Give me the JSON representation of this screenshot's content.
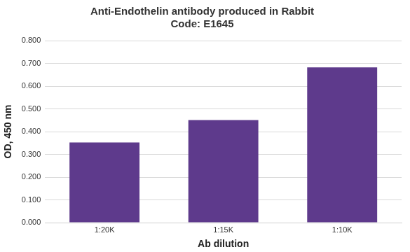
{
  "chart_data": {
    "type": "bar",
    "title": [
      "Anti-Endothelin antibody produced in Rabbit",
      "Code: E1645"
    ],
    "x_label": "Ab dilution",
    "y_label": "OD, 450 nm",
    "categories": [
      "1:20K",
      "1:15K",
      "1:10K"
    ],
    "values": [
      0.352,
      0.451,
      0.682
    ],
    "color": "#5e3a8c",
    "ylim": [
      0,
      0.8
    ],
    "yticks": [
      {
        "value": 0,
        "label": "0.000"
      },
      {
        "value": 0.1,
        "label": "0.100"
      },
      {
        "value": 0.2,
        "label": "0.200"
      },
      {
        "value": 0.3,
        "label": "0.300"
      },
      {
        "value": 0.4,
        "label": "0.400"
      },
      {
        "value": 0.5,
        "label": "0.500"
      },
      {
        "value": 0.6,
        "label": "0.600"
      },
      {
        "value": 0.7,
        "label": "0.700"
      },
      {
        "value": 0.8,
        "label": "0.800"
      }
    ],
    "grid": true
  }
}
